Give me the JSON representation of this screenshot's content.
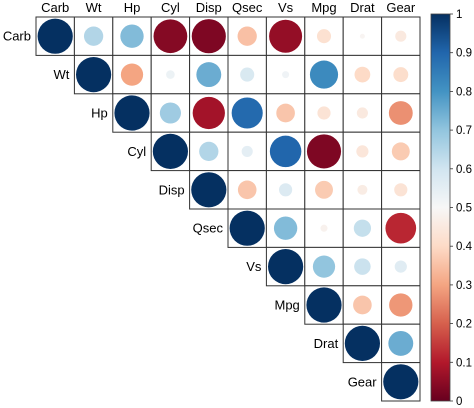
{
  "chart_data": {
    "type": "heatmap",
    "variables": [
      "Carb",
      "Wt",
      "Hp",
      "Cyl",
      "Disp",
      "Qsec",
      "Vs",
      "Mpg",
      "Drat",
      "Gear"
    ],
    "matrix": [
      [
        1.0,
        0.65,
        0.72,
        0.04,
        0.03,
        0.35,
        0.06,
        0.42,
        0.49,
        0.45
      ],
      [
        null,
        1.0,
        0.3,
        0.53,
        0.75,
        0.58,
        0.52,
        0.82,
        0.4,
        0.41
      ],
      [
        null,
        null,
        1.0,
        0.68,
        0.08,
        0.89,
        0.36,
        0.43,
        0.45,
        0.27
      ],
      [
        null,
        null,
        null,
        1.0,
        0.65,
        0.55,
        0.9,
        0.03,
        0.44,
        0.37
      ],
      [
        null,
        null,
        null,
        null,
        1.0,
        0.36,
        0.57,
        0.37,
        0.46,
        0.43
      ],
      [
        null,
        null,
        null,
        null,
        null,
        1.0,
        0.72,
        0.48,
        0.62,
        0.12
      ],
      [
        null,
        null,
        null,
        null,
        null,
        null,
        1.0,
        0.7,
        0.61,
        0.56
      ],
      [
        null,
        null,
        null,
        null,
        null,
        null,
        null,
        1.0,
        0.36,
        0.28
      ],
      [
        null,
        null,
        null,
        null,
        null,
        null,
        null,
        null,
        1.0,
        0.75
      ],
      [
        null,
        null,
        null,
        null,
        null,
        null,
        null,
        null,
        null,
        1.0
      ]
    ],
    "colorbar": {
      "min": 0,
      "max": 1,
      "ticks": [
        "0",
        "0.1",
        "0.2",
        "0.3",
        "0.4",
        "0.5",
        "0.6",
        "0.7",
        "0.8",
        "0.9",
        "1"
      ],
      "low_color": "#67001f",
      "mid_color": "#f7f7f7",
      "high_color": "#053061"
    }
  }
}
